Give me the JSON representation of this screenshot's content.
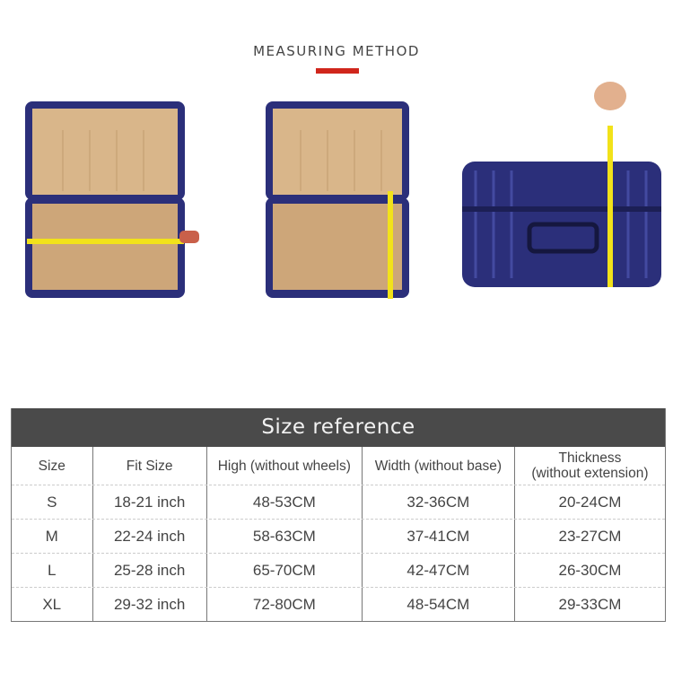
{
  "heading": "MEASURING METHOD",
  "colors": {
    "accent": "#d0261c",
    "header_bg": "#4a4a4a",
    "suitcase": "#2b2f7a",
    "lining": "#d9b68a",
    "tape": "#f2e21a"
  },
  "photos": [
    {
      "icon": "open-suitcase-width-measure-icon"
    },
    {
      "icon": "open-suitcase-height-measure-icon"
    },
    {
      "icon": "closed-suitcase-thickness-measure-icon"
    }
  ],
  "table": {
    "title": "Size reference",
    "columns": [
      "Size",
      "Fit Size",
      "High (without wheels)",
      "Width (without base)",
      "Thickness\n(without extension)"
    ],
    "rows": [
      [
        "S",
        "18-21 inch",
        "48-53CM",
        "32-36CM",
        "20-24CM"
      ],
      [
        "M",
        "22-24 inch",
        "58-63CM",
        "37-41CM",
        "23-27CM"
      ],
      [
        "L",
        "25-28 inch",
        "65-70CM",
        "42-47CM",
        "26-30CM"
      ],
      [
        "XL",
        "29-32 inch",
        "72-80CM",
        "48-54CM",
        "29-33CM"
      ]
    ]
  }
}
